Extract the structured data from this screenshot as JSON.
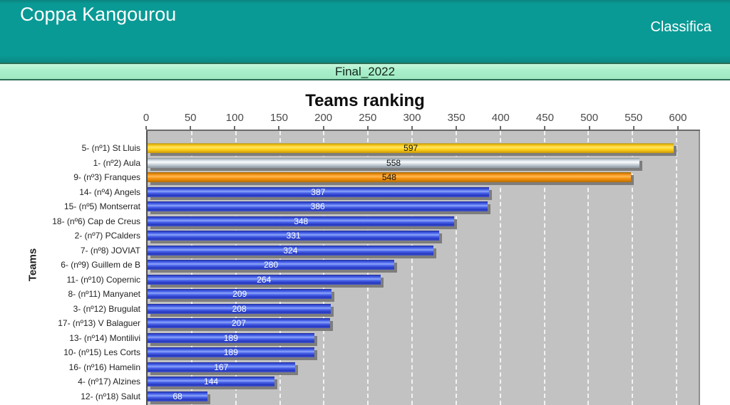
{
  "header": {
    "app_title": "Coppa Kangourou",
    "page_title": "Classifica",
    "colors": {
      "background": "#0a9a95",
      "text": "#ffffff"
    }
  },
  "session_bar": {
    "label": "Final_2022",
    "colors": {
      "background": "#a8efca",
      "border": "#2d6e54",
      "text": "#12261b"
    }
  },
  "chart_data": {
    "type": "bar",
    "orientation": "horizontal",
    "title": "Teams ranking",
    "xlabel": "",
    "ylabel": "Teams",
    "x_axis_position": "top",
    "xlim": [
      0,
      625
    ],
    "xticks": [
      0,
      50,
      100,
      150,
      200,
      250,
      300,
      350,
      400,
      450,
      500,
      550,
      600
    ],
    "grid": "vertical dashed white lines on gray plot background",
    "legend": "none",
    "categories": [
      "5- (nº1) St Lluis",
      "1- (nº2) Aula",
      "9- (nº3) Franques",
      "14- (nº4) Angels",
      "15- (nº5) Montserrat",
      "18- (nº6) Cap de Creus",
      "2- (nº7) PCalders",
      "7- (nº8) JOVIAT",
      "6- (nº9) Guillem de B",
      "11- (nº10) Copernic",
      "8- (nº11) Manyanet",
      "3- (nº12) Brugulat",
      "17- (nº13) V Balaguer",
      "13- (nº14) Montilivi",
      "10- (nº15) Les Corts",
      "16- (nº16) Hamelin",
      "4- (nº17) Alzines",
      "12- (nº18) Salut"
    ],
    "values": [
      597,
      558,
      548,
      387,
      386,
      348,
      331,
      324,
      280,
      264,
      209,
      208,
      207,
      189,
      189,
      167,
      144,
      68
    ],
    "bar_colors": [
      "gold",
      "silver",
      "bronze",
      "blue",
      "blue",
      "blue",
      "blue",
      "blue",
      "blue",
      "blue",
      "blue",
      "blue",
      "blue",
      "blue",
      "blue",
      "blue",
      "blue",
      "blue"
    ],
    "palette": {
      "gold": "#ffd51d",
      "silver": "#d5dde4",
      "bronze": "#f89310",
      "blue": "#4a63ea",
      "plot_background": "#c2c2c2",
      "bar_shadow": "#7d7d7d",
      "axis": "#6a6a6a",
      "tick_text": "#4a4a4a"
    },
    "value_label_colors": {
      "gold": "#141414",
      "silver": "#141414",
      "bronze": "#141414",
      "blue": "#ffffff"
    }
  }
}
